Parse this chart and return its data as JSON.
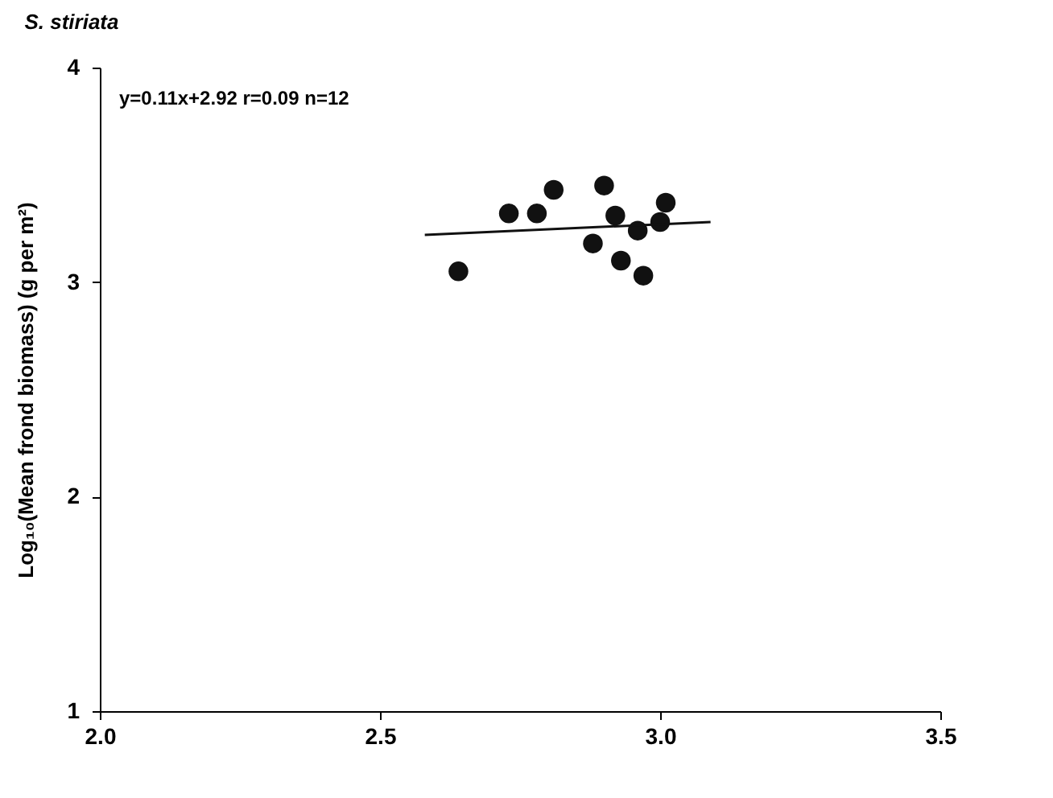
{
  "chart_data": {
    "type": "scatter",
    "title": "S. stiriata",
    "ylabel": "Log₁₀(Mean frond biomass) (g per m²)",
    "annotations": [
      "y=0.11x+2.92   r=0.09  n=12"
    ],
    "series": [
      {
        "color": "#111111",
        "marker": "circle",
        "x": [
          2.64,
          2.73,
          2.78,
          2.81,
          2.9,
          2.92,
          2.88,
          2.93,
          2.96,
          2.97,
          3.01,
          3.0
        ],
        "values": [
          3.05,
          3.32,
          3.32,
          3.43,
          3.45,
          3.31,
          3.18,
          3.1,
          3.24,
          3.03,
          3.37,
          3.28
        ]
      },
      {
        "type": "line",
        "color": "#111111",
        "marker": "none",
        "x": [
          2.58,
          3.09
        ],
        "values": [
          3.22,
          3.28
        ]
      }
    ],
    "xlim": [
      2.0,
      3.5
    ],
    "xticks": [
      {
        "value": 2.0,
        "label": "2.0"
      },
      {
        "value": 2.5,
        "label": "2.5"
      },
      {
        "value": 3.0,
        "label": "3.0"
      },
      {
        "value": 3.5,
        "label": "3.5"
      }
    ],
    "ylim": [
      1,
      4
    ],
    "yticks": [
      1,
      2,
      3,
      4
    ],
    "grid": false
  }
}
